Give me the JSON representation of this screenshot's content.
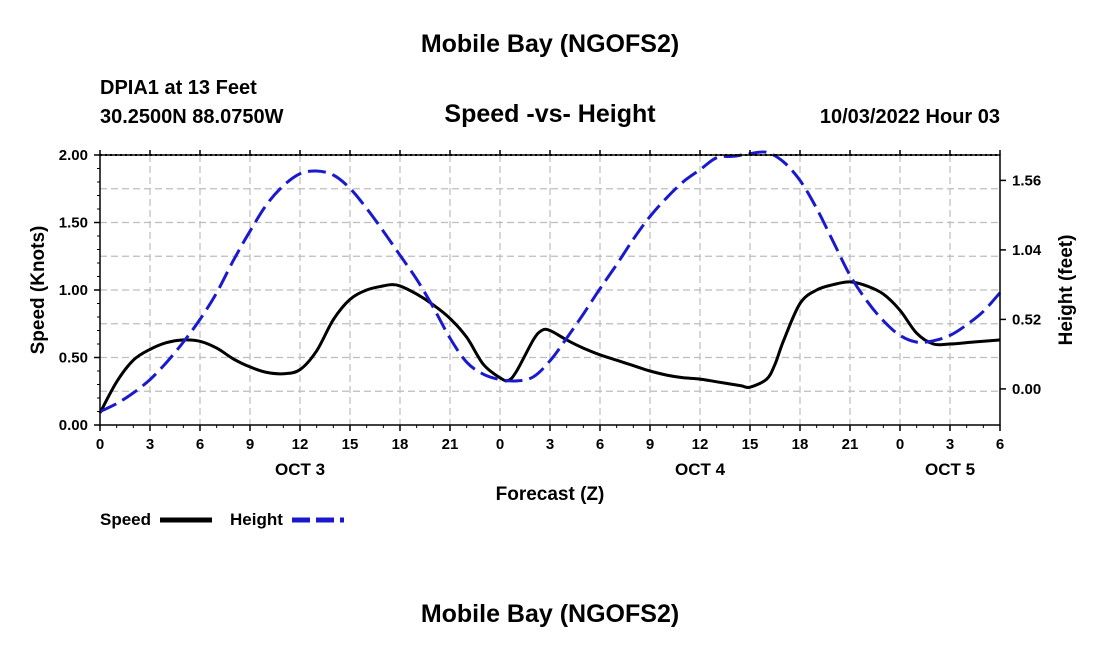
{
  "header": {
    "title": "Mobile Bay (NGOFS2)",
    "station": "DPIA1 at 13 Feet",
    "coords": "30.2500N  88.0750W",
    "subtitle": "Speed -vs- Height",
    "timestamp": "10/03/2022 Hour 03"
  },
  "footer": {
    "title": "Mobile Bay (NGOFS2)"
  },
  "legend": [
    {
      "label": "Speed",
      "color": "#000000",
      "style": "solid"
    },
    {
      "label": "Height",
      "color": "#1a1acc",
      "style": "dashed"
    }
  ],
  "chart_data": {
    "type": "line",
    "xlabel": "Forecast (Z)",
    "ylabel": "Speed (Knots)",
    "y2label": "Height (feet)",
    "xlim": [
      0,
      54
    ],
    "ylim": [
      0,
      2.0
    ],
    "y2lim": [
      -0.27,
      1.75
    ],
    "x_ticks": [
      0,
      3,
      6,
      9,
      12,
      15,
      18,
      21,
      24,
      27,
      30,
      33,
      36,
      39,
      42,
      45,
      48,
      51,
      54
    ],
    "x_tick_labels": [
      "0",
      "3",
      "6",
      "9",
      "12",
      "15",
      "18",
      "21",
      "0",
      "3",
      "6",
      "9",
      "12",
      "15",
      "18",
      "21",
      "0",
      "3",
      "6"
    ],
    "day_labels": [
      {
        "x": 12,
        "label": "OCT 3"
      },
      {
        "x": 36,
        "label": "OCT 4"
      },
      {
        "x": 51,
        "label": "OCT 5"
      }
    ],
    "y_ticks": [
      0.0,
      0.5,
      1.0,
      1.5,
      2.0
    ],
    "y_tick_labels": [
      "0.00",
      "0.50",
      "1.00",
      "1.50",
      "2.00"
    ],
    "y2_ticks": [
      0.0,
      0.52,
      1.04,
      1.56
    ],
    "y2_tick_labels": [
      "0.00",
      "0.52",
      "1.04",
      "1.56"
    ],
    "grid": true,
    "legend_position": "bottom-left",
    "series": [
      {
        "name": "Speed",
        "axis": "left",
        "color": "#000000",
        "style": "solid",
        "x": [
          0,
          1,
          2,
          3,
          4,
          5,
          6,
          7,
          8,
          9,
          10,
          11,
          12,
          13,
          14,
          15,
          16,
          17,
          17.5,
          18,
          19,
          20,
          21,
          22,
          23,
          24,
          24.5,
          25,
          26,
          26.5,
          27,
          28,
          29,
          30,
          31,
          32,
          33,
          34,
          35,
          36,
          37,
          38,
          38.5,
          39,
          40,
          40.5,
          41,
          42,
          43,
          44,
          45,
          46,
          47,
          48,
          49,
          50,
          51,
          52,
          53,
          54
        ],
        "y": [
          0.09,
          0.32,
          0.48,
          0.56,
          0.61,
          0.63,
          0.62,
          0.57,
          0.49,
          0.43,
          0.39,
          0.38,
          0.41,
          0.55,
          0.78,
          0.93,
          1.0,
          1.03,
          1.04,
          1.03,
          0.97,
          0.89,
          0.79,
          0.65,
          0.45,
          0.35,
          0.33,
          0.4,
          0.63,
          0.7,
          0.7,
          0.63,
          0.57,
          0.52,
          0.48,
          0.44,
          0.4,
          0.37,
          0.35,
          0.34,
          0.32,
          0.3,
          0.29,
          0.28,
          0.34,
          0.45,
          0.62,
          0.9,
          1.0,
          1.04,
          1.06,
          1.03,
          0.97,
          0.85,
          0.68,
          0.6,
          0.6,
          0.61,
          0.62,
          0.63
        ]
      },
      {
        "name": "Height",
        "axis": "right",
        "color": "#1a1acc",
        "style": "dashed",
        "x": [
          0,
          1,
          2,
          3,
          4,
          5,
          6,
          7,
          8,
          9,
          10,
          11,
          12,
          13,
          14,
          15,
          16,
          17,
          18,
          19,
          20,
          21,
          22,
          23,
          24,
          25,
          26,
          27,
          28,
          29,
          30,
          31,
          32,
          33,
          34,
          35,
          36,
          37,
          38,
          39,
          40,
          41,
          42,
          43,
          44,
          45,
          46,
          47,
          48,
          49,
          50,
          51,
          52,
          53,
          54
        ],
        "y": [
          -0.17,
          -0.11,
          -0.03,
          0.07,
          0.2,
          0.35,
          0.52,
          0.72,
          0.96,
          1.18,
          1.38,
          1.52,
          1.61,
          1.63,
          1.6,
          1.5,
          1.35,
          1.18,
          1.0,
          0.82,
          0.61,
          0.38,
          0.2,
          0.11,
          0.07,
          0.06,
          0.09,
          0.21,
          0.38,
          0.56,
          0.75,
          0.93,
          1.12,
          1.29,
          1.43,
          1.55,
          1.64,
          1.73,
          1.74,
          1.76,
          1.77,
          1.7,
          1.56,
          1.35,
          1.1,
          0.85,
          0.66,
          0.51,
          0.4,
          0.35,
          0.36,
          0.4,
          0.48,
          0.58,
          0.72
        ]
      }
    ]
  }
}
